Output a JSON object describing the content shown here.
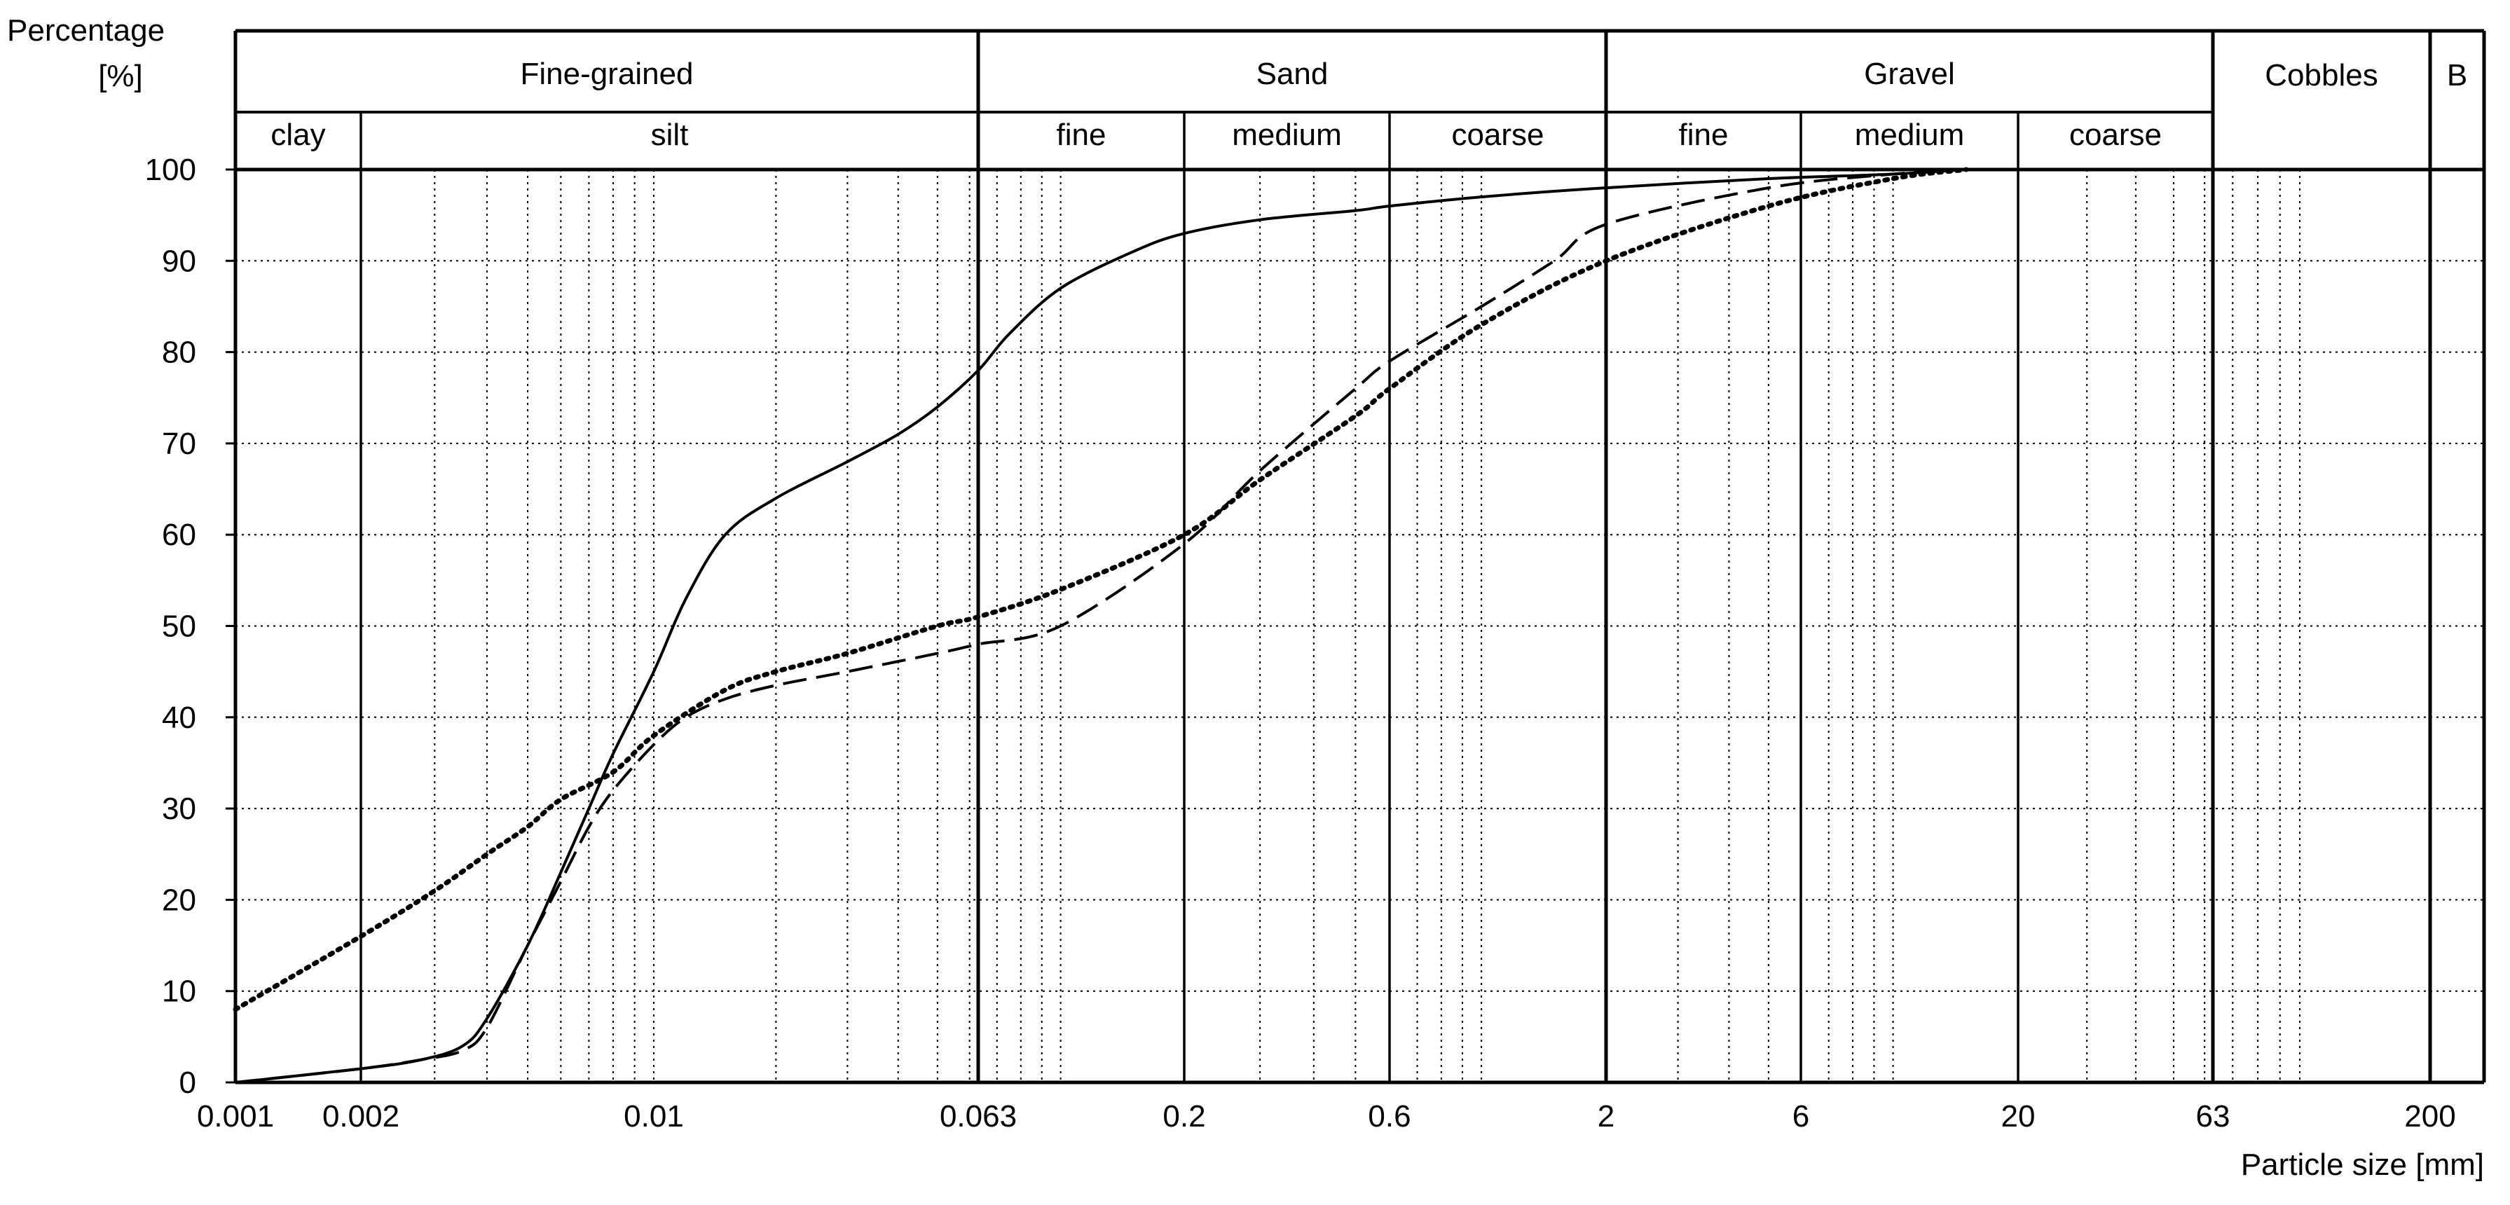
{
  "chart_data": {
    "type": "line",
    "title": "",
    "ylabel": "Percentage",
    "yunit": "[%]",
    "xlabel": "Particle size [mm]",
    "x_scale": "log",
    "xlim": [
      0.001,
      200
    ],
    "ylim": [
      0,
      100
    ],
    "grid": true,
    "y_ticks": [
      "0",
      "10",
      "20",
      "30",
      "40",
      "50",
      "60",
      "70",
      "80",
      "90",
      "100"
    ],
    "x_tick_labels": [
      {
        "value": 0.001,
        "label": "0.001"
      },
      {
        "value": 0.002,
        "label": "0.002"
      },
      {
        "value": 0.01,
        "label": "0.01"
      },
      {
        "value": 0.063,
        "label": "0.063"
      },
      {
        "value": 0.2,
        "label": "0.2"
      },
      {
        "value": 0.6,
        "label": "0.6"
      },
      {
        "value": 2,
        "label": "2"
      },
      {
        "value": 6,
        "label": "6"
      },
      {
        "value": 20,
        "label": "20"
      },
      {
        "value": 63,
        "label": "63"
      },
      {
        "value": 200,
        "label": "200"
      }
    ],
    "header_groups": [
      {
        "label": "Fine-grained",
        "from": 0.001,
        "to": 0.063
      },
      {
        "label": "Sand",
        "from": 0.063,
        "to": 2
      },
      {
        "label": "Gravel",
        "from": 2,
        "to": 63
      },
      {
        "label": "Cobbles",
        "from": 63,
        "to": 200
      },
      {
        "label": "B",
        "from": 200,
        "to": 280
      }
    ],
    "header_subgroups": [
      {
        "label": "clay",
        "from": 0.001,
        "to": 0.002
      },
      {
        "label": "silt",
        "from": 0.002,
        "to": 0.063
      },
      {
        "label": "fine",
        "from": 0.063,
        "to": 0.2
      },
      {
        "label": "medium",
        "from": 0.2,
        "to": 0.6
      },
      {
        "label": "coarse",
        "from": 0.6,
        "to": 2
      },
      {
        "label": "fine",
        "from": 2,
        "to": 6
      },
      {
        "label": "medium",
        "from": 6,
        "to": 20
      },
      {
        "label": "coarse",
        "from": 20,
        "to": 63
      }
    ],
    "series": [
      {
        "style": "solid",
        "x": [
          0.001,
          0.002,
          0.0028,
          0.0035,
          0.004,
          0.005,
          0.006,
          0.007,
          0.008,
          0.01,
          0.012,
          0.015,
          0.02,
          0.03,
          0.04,
          0.05,
          0.063,
          0.075,
          0.1,
          0.15,
          0.2,
          0.3,
          0.5,
          0.6,
          1,
          2,
          5,
          10,
          15
        ],
        "y": [
          0,
          1.5,
          2.5,
          4,
          7,
          15,
          23,
          30,
          36,
          45,
          53,
          60,
          64,
          68,
          71,
          74,
          78,
          82,
          87,
          91,
          93,
          94.5,
          95.5,
          96,
          97,
          98,
          99,
          99.5,
          100
        ]
      },
      {
        "style": "dashed",
        "x": [
          0.001,
          0.002,
          0.0028,
          0.0035,
          0.004,
          0.005,
          0.006,
          0.007,
          0.008,
          0.01,
          0.012,
          0.015,
          0.02,
          0.03,
          0.05,
          0.063,
          0.1,
          0.2,
          0.3,
          0.5,
          0.6,
          1,
          1.5,
          2,
          5,
          10,
          15
        ],
        "y": [
          0,
          1.5,
          2.5,
          3.5,
          6,
          15,
          22,
          28,
          32,
          37,
          40,
          42,
          43.5,
          45,
          47,
          48,
          50,
          59,
          67,
          76,
          79,
          85,
          90,
          94,
          98,
          99.5,
          100
        ]
      },
      {
        "style": "dotted",
        "x": [
          0.001,
          0.002,
          0.003,
          0.004,
          0.005,
          0.006,
          0.008,
          0.01,
          0.015,
          0.02,
          0.03,
          0.05,
          0.063,
          0.1,
          0.2,
          0.3,
          0.5,
          0.6,
          1,
          2,
          5,
          10,
          15
        ],
        "y": [
          8,
          16,
          21,
          25,
          28,
          31,
          34,
          38,
          43,
          45,
          47,
          50,
          51,
          54,
          60,
          66,
          73,
          76,
          83,
          90,
          96,
          99,
          100
        ]
      }
    ]
  }
}
